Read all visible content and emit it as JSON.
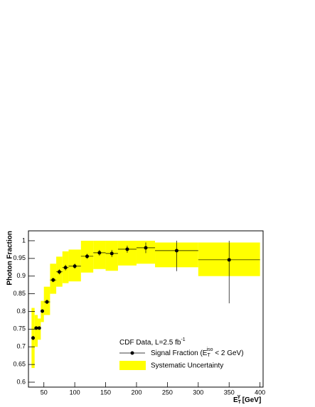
{
  "chart_data": {
    "type": "errorbar",
    "y_label": "Photon Fraction",
    "x_label": [
      "E",
      "T",
      "γ",
      " [GeV]"
    ],
    "annotation": [
      "CDF Data, L=2.5 fb",
      "-1"
    ],
    "xlim": [
      25,
      405
    ],
    "ylim": [
      0.586,
      1.028
    ],
    "xticks": [
      50,
      100,
      150,
      200,
      250,
      300,
      350,
      400
    ],
    "yticks": [
      0.6,
      0.65,
      0.7,
      0.75,
      0.8,
      0.85,
      0.9,
      0.95,
      1
    ],
    "series": [
      {
        "name": [
          "Signal Fraction (E",
          "T",
          "iso",
          " < 2 GeV)"
        ],
        "color": "#000000",
        "x": [
          32.5,
          37.5,
          42.5,
          47.5,
          55,
          65,
          75,
          85,
          100,
          120,
          140,
          160,
          185,
          215,
          265,
          350
        ],
        "xerr": [
          2.5,
          2.5,
          2.5,
          2.5,
          5,
          5,
          5,
          5,
          10,
          10,
          10,
          10,
          15,
          15,
          35,
          50
        ],
        "values": [
          0.725,
          0.753,
          0.753,
          0.801,
          0.827,
          0.889,
          0.912,
          0.924,
          0.928,
          0.956,
          0.966,
          0.964,
          0.976,
          0.98,
          0.972,
          0.946
        ],
        "yerr_low": [
          0.006,
          0.004,
          0.004,
          0.005,
          0.006,
          0.006,
          0.007,
          0.008,
          0.007,
          0.007,
          0.008,
          0.01,
          0.01,
          0.015,
          0.058,
          0.123
        ],
        "yerr_high": [
          0.006,
          0.004,
          0.004,
          0.005,
          0.006,
          0.006,
          0.007,
          0.008,
          0.007,
          0.007,
          0.008,
          0.01,
          0.01,
          0.015,
          0.028,
          0.054
        ]
      },
      {
        "name": "Systematic Uncertainty",
        "color": "#ffff00",
        "x_low": [
          30,
          35,
          40,
          45,
          50,
          60,
          70,
          80,
          90,
          110,
          130,
          150,
          170,
          200,
          230,
          300
        ],
        "x_high": [
          35,
          40,
          45,
          50,
          60,
          70,
          80,
          90,
          110,
          130,
          150,
          170,
          200,
          230,
          300,
          400
        ],
        "low": [
          0.64,
          0.7,
          0.72,
          0.77,
          0.79,
          0.85,
          0.87,
          0.88,
          0.885,
          0.91,
          0.92,
          0.915,
          0.93,
          0.935,
          0.925,
          0.9
        ],
        "high": [
          0.81,
          0.79,
          0.78,
          0.83,
          0.87,
          0.935,
          0.955,
          0.97,
          0.975,
          1.0,
          1.0,
          1.0,
          1.0,
          1.0,
          0.995,
          0.995
        ]
      }
    ]
  }
}
